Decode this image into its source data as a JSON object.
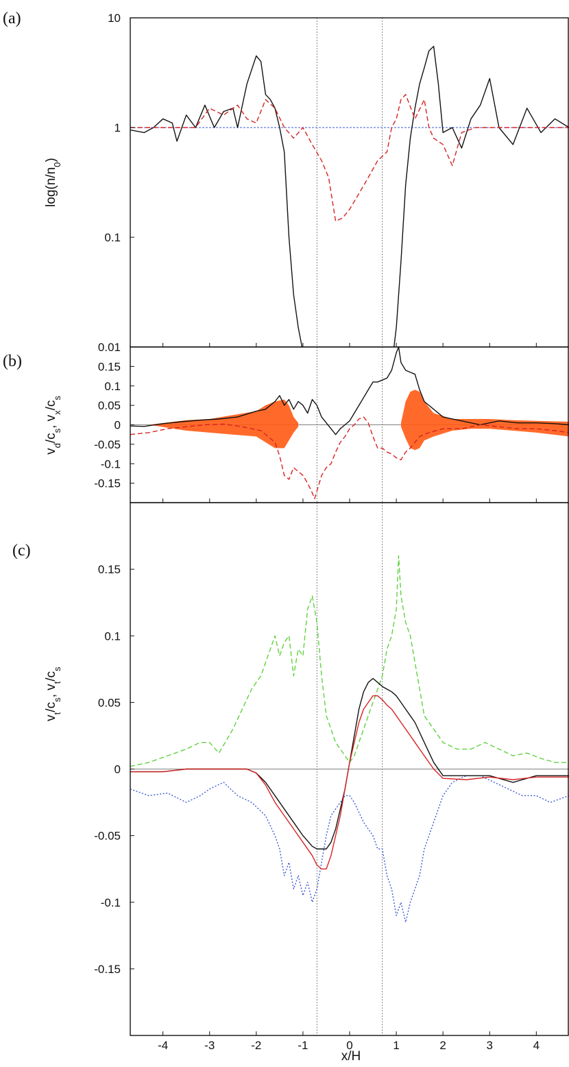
{
  "figure": {
    "xlabel": "x/H",
    "xlim": [
      -4.7,
      4.7
    ],
    "xticks": [
      "-4",
      "-3",
      "-2",
      "-1",
      "0",
      "1",
      "2",
      "3",
      "4"
    ],
    "vlines_x": [
      -0.7,
      0.7
    ],
    "colors": {
      "black": "#111111",
      "red": "#d62222",
      "blue": "#3a58d6",
      "green": "#5fd13e",
      "orange": "#ff5a14",
      "gray": "#808080"
    }
  },
  "chart_data": [
    {
      "panel": "(a)",
      "type": "line",
      "ylabel": "log(n/n0)",
      "yscale": "log",
      "ylim": [
        0.01,
        10
      ],
      "yticks": [
        "0.01",
        "0.1",
        "1",
        "10"
      ],
      "hline_y": 1,
      "series": [
        {
          "color": "black",
          "style": "solid",
          "x": [
            -4.7,
            -4.4,
            -4.2,
            -4.0,
            -3.8,
            -3.7,
            -3.5,
            -3.3,
            -3.1,
            -2.9,
            -2.7,
            -2.5,
            -2.4,
            -2.2,
            -2.0,
            -1.9,
            -1.8,
            -1.7,
            -1.6,
            -1.5,
            -1.4,
            -1.3,
            -1.2,
            -1.1,
            -1.02
          ],
          "y": [
            0.95,
            0.9,
            1.0,
            1.2,
            1.1,
            0.75,
            1.3,
            1.0,
            1.6,
            1.0,
            1.4,
            1.5,
            1.0,
            2.5,
            4.5,
            4.0,
            2.0,
            1.8,
            1.5,
            1.0,
            0.6,
            0.1,
            0.03,
            0.015,
            0.01
          ]
        },
        {
          "color": "black",
          "style": "solid",
          "x": [
            0.95,
            1.0,
            1.1,
            1.2,
            1.3,
            1.4,
            1.5,
            1.6,
            1.7,
            1.8,
            1.9,
            2.0,
            2.2,
            2.4,
            2.6,
            2.8,
            3.0,
            3.2,
            3.5,
            3.8,
            4.1,
            4.4,
            4.7
          ],
          "y": [
            0.01,
            0.015,
            0.06,
            0.3,
            0.8,
            1.5,
            2.5,
            3.5,
            5.0,
            5.5,
            2.5,
            0.9,
            1.0,
            0.65,
            1.2,
            1.6,
            2.8,
            1.0,
            0.7,
            1.5,
            0.9,
            1.2,
            1.0
          ]
        },
        {
          "color": "red",
          "style": "dashed",
          "x": [
            -4.7,
            -4.2,
            -3.8,
            -3.3,
            -3.0,
            -2.7,
            -2.4,
            -2.2,
            -2.0,
            -1.8,
            -1.6,
            -1.4,
            -1.2,
            -1.0,
            -0.8,
            -0.6,
            -0.45,
            -0.3,
            -0.15,
            0.0,
            0.2,
            0.4,
            0.6,
            0.8,
            0.9,
            1.0,
            1.1,
            1.2,
            1.4,
            1.6,
            1.7,
            1.8,
            2.0,
            2.2,
            2.4,
            2.7,
            3.0,
            3.5,
            4.0,
            4.7
          ],
          "y": [
            1.0,
            1.0,
            1.0,
            1.0,
            1.5,
            1.3,
            1.6,
            1.2,
            1.1,
            1.8,
            1.5,
            1.0,
            0.8,
            1.0,
            0.7,
            0.5,
            0.35,
            0.14,
            0.15,
            0.18,
            0.25,
            0.35,
            0.5,
            0.6,
            1.0,
            1.2,
            1.8,
            2.0,
            1.2,
            1.8,
            1.0,
            0.8,
            0.7,
            0.45,
            0.9,
            1.0,
            1.0,
            1.0,
            1.0,
            1.0
          ]
        }
      ]
    },
    {
      "panel": "(b)",
      "type": "line",
      "ylabel": "vd/cs, vx/cs",
      "ylim": [
        -0.2,
        0.2
      ],
      "yticks": [
        "-0.15",
        "-0.1",
        "-0.05",
        "0",
        "0.05",
        "0.1",
        "0.15"
      ],
      "hline_y": 0,
      "series": [
        {
          "color": "black",
          "style": "solid",
          "x": [
            -4.7,
            -4.4,
            -4.0,
            -3.6,
            -3.2,
            -2.8,
            -2.4,
            -2.0,
            -1.8,
            -1.6,
            -1.5,
            -1.4,
            -1.3,
            -1.2,
            -1.1,
            -1.0,
            -0.9,
            -0.8,
            -0.7,
            -0.6,
            -0.5,
            -0.4,
            -0.3,
            -0.2,
            -0.1,
            0.0,
            0.1,
            0.2,
            0.3,
            0.4,
            0.5,
            0.6,
            0.7,
            0.8,
            0.9,
            1.0,
            1.05,
            1.1,
            1.2,
            1.3,
            1.4,
            1.5,
            1.6,
            1.8,
            2.0,
            2.4,
            2.8,
            3.2,
            3.6,
            4.0,
            4.4,
            4.7
          ],
          "y": [
            -0.003,
            -0.004,
            0.003,
            0.008,
            0.012,
            0.015,
            0.02,
            0.035,
            0.04,
            0.06,
            0.075,
            0.05,
            0.065,
            0.04,
            0.06,
            0.05,
            0.03,
            0.065,
            0.05,
            0.02,
            0.005,
            -0.01,
            -0.025,
            -0.01,
            0.0,
            0.01,
            0.03,
            0.05,
            0.07,
            0.09,
            0.11,
            0.11,
            0.115,
            0.12,
            0.14,
            0.185,
            0.2,
            0.16,
            0.14,
            0.135,
            0.13,
            0.09,
            0.06,
            0.04,
            0.02,
            0.01,
            0.0,
            0.01,
            0.005,
            0.005,
            0.003,
            0.0
          ]
        },
        {
          "color": "red",
          "style": "dashed",
          "x": [
            -4.7,
            -4.3,
            -3.9,
            -3.5,
            -3.1,
            -2.7,
            -2.3,
            -1.9,
            -1.6,
            -1.5,
            -1.4,
            -1.3,
            -1.2,
            -1.1,
            -1.0,
            -0.9,
            -0.8,
            -0.75,
            -0.7,
            -0.6,
            -0.5,
            -0.4,
            -0.3,
            -0.2,
            -0.1,
            0.0,
            0.1,
            0.2,
            0.3,
            0.4,
            0.5,
            0.6,
            0.7,
            0.8,
            0.9,
            1.0,
            1.1,
            1.2,
            1.3,
            1.5,
            1.7,
            2.0,
            2.4,
            2.8,
            3.2,
            3.6,
            4.0,
            4.4,
            4.7
          ],
          "y": [
            -0.025,
            -0.02,
            -0.01,
            -0.005,
            0.0,
            0.002,
            -0.005,
            -0.015,
            -0.045,
            -0.08,
            -0.13,
            -0.14,
            -0.11,
            -0.12,
            -0.13,
            -0.15,
            -0.175,
            -0.19,
            -0.17,
            -0.13,
            -0.11,
            -0.1,
            -0.07,
            -0.045,
            -0.03,
            -0.01,
            0.0,
            0.015,
            0.02,
            0.005,
            -0.03,
            -0.06,
            -0.06,
            -0.07,
            -0.075,
            -0.085,
            -0.09,
            -0.07,
            -0.06,
            -0.03,
            -0.02,
            -0.01,
            -0.01,
            0.0,
            -0.005,
            -0.01,
            -0.01,
            -0.015,
            -0.02
          ]
        }
      ],
      "scatter_band": {
        "color": "orange",
        "x": [
          -4.3,
          -3.5,
          -3.0,
          -2.5,
          -2.0,
          -1.8,
          -1.6,
          -1.4,
          -1.3,
          -1.2,
          -1.1,
          1.1,
          1.2,
          1.3,
          1.4,
          1.5,
          1.6,
          1.8,
          2.2,
          2.6,
          3.0,
          3.5,
          4.0,
          4.7
        ],
        "ymin": [
          0.0,
          -0.015,
          -0.02,
          -0.025,
          -0.03,
          -0.045,
          -0.06,
          -0.06,
          -0.04,
          -0.02,
          -0.005,
          -0.005,
          -0.035,
          -0.06,
          -0.065,
          -0.06,
          -0.04,
          -0.03,
          -0.015,
          -0.01,
          -0.01,
          -0.015,
          -0.02,
          -0.03
        ],
        "ymax": [
          0.0,
          0.012,
          0.015,
          0.025,
          0.035,
          0.05,
          0.06,
          0.065,
          0.05,
          0.02,
          0.005,
          0.005,
          0.06,
          0.085,
          0.09,
          0.085,
          0.06,
          0.03,
          0.015,
          0.015,
          0.015,
          0.012,
          0.01,
          0.008
        ]
      }
    },
    {
      "panel": "(c)",
      "type": "line",
      "ylabel": "vt/cs, vt/cs",
      "ylim": [
        -0.2,
        0.2
      ],
      "yticks": [
        "-0.15",
        "-0.1",
        "-0.05",
        "0",
        "0.05",
        "0.1",
        "0.15"
      ],
      "hline_y": 0,
      "series": [
        {
          "color": "green",
          "style": "dashed",
          "x": [
            -4.7,
            -4.3,
            -3.9,
            -3.5,
            -3.2,
            -3.0,
            -2.8,
            -2.5,
            -2.3,
            -2.1,
            -1.9,
            -1.7,
            -1.6,
            -1.5,
            -1.4,
            -1.3,
            -1.2,
            -1.1,
            -1.0,
            -0.9,
            -0.8,
            -0.7,
            -0.6,
            -0.5,
            -0.4,
            -0.3,
            -0.2,
            -0.1,
            0.0,
            0.1,
            0.2,
            0.3,
            0.4,
            0.5,
            0.6,
            0.7,
            0.8,
            0.9,
            1.0,
            1.05,
            1.1,
            1.2,
            1.3,
            1.4,
            1.5,
            1.6,
            1.8,
            2.0,
            2.3,
            2.6,
            2.9,
            3.2,
            3.5,
            3.8,
            4.1,
            4.4,
            4.7
          ],
          "y": [
            0.002,
            0.005,
            0.01,
            0.015,
            0.02,
            0.02,
            0.012,
            0.03,
            0.045,
            0.06,
            0.07,
            0.09,
            0.1,
            0.085,
            0.095,
            0.1,
            0.07,
            0.09,
            0.085,
            0.12,
            0.13,
            0.11,
            0.07,
            0.04,
            0.03,
            0.02,
            0.015,
            0.01,
            0.005,
            0.01,
            0.02,
            0.03,
            0.04,
            0.05,
            0.06,
            0.07,
            0.09,
            0.1,
            0.12,
            0.16,
            0.13,
            0.11,
            0.1,
            0.08,
            0.06,
            0.04,
            0.03,
            0.02,
            0.015,
            0.015,
            0.02,
            0.015,
            0.01,
            0.012,
            0.008,
            0.005,
            0.005
          ]
        },
        {
          "color": "blue",
          "style": "dotted",
          "x": [
            -4.7,
            -4.3,
            -3.9,
            -3.5,
            -3.2,
            -3.0,
            -2.7,
            -2.4,
            -2.1,
            -1.8,
            -1.6,
            -1.5,
            -1.4,
            -1.3,
            -1.2,
            -1.1,
            -1.0,
            -0.9,
            -0.8,
            -0.7,
            -0.6,
            -0.5,
            -0.4,
            -0.3,
            -0.2,
            -0.1,
            0.0,
            0.1,
            0.3,
            0.5,
            0.6,
            0.7,
            0.8,
            0.9,
            1.0,
            1.1,
            1.2,
            1.3,
            1.4,
            1.5,
            1.6,
            1.8,
            2.0,
            2.2,
            2.5,
            2.8,
            3.1,
            3.4,
            3.7,
            4.0,
            4.3,
            4.7
          ],
          "y": [
            -0.015,
            -0.02,
            -0.018,
            -0.025,
            -0.02,
            -0.015,
            -0.01,
            -0.02,
            -0.025,
            -0.035,
            -0.05,
            -0.06,
            -0.08,
            -0.07,
            -0.09,
            -0.08,
            -0.095,
            -0.085,
            -0.1,
            -0.09,
            -0.07,
            -0.05,
            -0.035,
            -0.03,
            -0.025,
            -0.02,
            -0.02,
            -0.025,
            -0.04,
            -0.05,
            -0.06,
            -0.06,
            -0.08,
            -0.09,
            -0.11,
            -0.1,
            -0.115,
            -0.1,
            -0.09,
            -0.08,
            -0.06,
            -0.04,
            -0.02,
            -0.01,
            -0.005,
            -0.005,
            -0.01,
            -0.015,
            -0.02,
            -0.02,
            -0.025,
            -0.02
          ]
        },
        {
          "color": "black",
          "style": "solid",
          "x": [
            -4.7,
            -4.0,
            -3.5,
            -3.0,
            -2.6,
            -2.2,
            -2.0,
            -1.8,
            -1.6,
            -1.4,
            -1.2,
            -1.0,
            -0.8,
            -0.7,
            -0.6,
            -0.5,
            -0.4,
            -0.3,
            -0.2,
            -0.1,
            0.0,
            0.1,
            0.2,
            0.3,
            0.4,
            0.5,
            0.6,
            0.7,
            0.8,
            0.9,
            1.0,
            1.1,
            1.2,
            1.3,
            1.4,
            1.6,
            1.8,
            2.0,
            2.5,
            3.0,
            3.5,
            4.0,
            4.7
          ],
          "y": [
            -0.002,
            -0.002,
            0.0,
            0.0,
            0.0,
            0.0,
            -0.003,
            -0.01,
            -0.02,
            -0.03,
            -0.04,
            -0.05,
            -0.058,
            -0.06,
            -0.06,
            -0.06,
            -0.055,
            -0.045,
            -0.03,
            -0.015,
            0.005,
            0.025,
            0.045,
            0.058,
            0.065,
            0.068,
            0.065,
            0.062,
            0.06,
            0.058,
            0.055,
            0.05,
            0.045,
            0.04,
            0.035,
            0.02,
            0.005,
            -0.005,
            -0.005,
            -0.005,
            -0.01,
            -0.005,
            -0.005
          ]
        },
        {
          "color": "red",
          "style": "solid",
          "x": [
            -4.7,
            -4.0,
            -3.5,
            -3.0,
            -2.6,
            -2.2,
            -2.0,
            -1.8,
            -1.6,
            -1.4,
            -1.2,
            -1.0,
            -0.8,
            -0.7,
            -0.6,
            -0.5,
            -0.4,
            -0.3,
            -0.2,
            -0.1,
            0.0,
            0.1,
            0.2,
            0.3,
            0.4,
            0.5,
            0.6,
            0.7,
            0.8,
            0.9,
            1.0,
            1.1,
            1.2,
            1.3,
            1.4,
            1.6,
            1.8,
            2.0,
            2.5,
            3.0,
            3.5,
            4.0,
            4.7
          ],
          "y": [
            -0.002,
            -0.002,
            0.0,
            0.0,
            0.0,
            0.0,
            -0.003,
            -0.012,
            -0.025,
            -0.035,
            -0.045,
            -0.055,
            -0.065,
            -0.072,
            -0.075,
            -0.075,
            -0.065,
            -0.05,
            -0.035,
            -0.015,
            0.005,
            0.02,
            0.035,
            0.045,
            0.05,
            0.055,
            0.055,
            0.052,
            0.048,
            0.045,
            0.04,
            0.035,
            0.03,
            0.025,
            0.02,
            0.01,
            0.0,
            -0.007,
            -0.008,
            -0.006,
            -0.008,
            -0.006,
            -0.006
          ]
        }
      ]
    }
  ]
}
